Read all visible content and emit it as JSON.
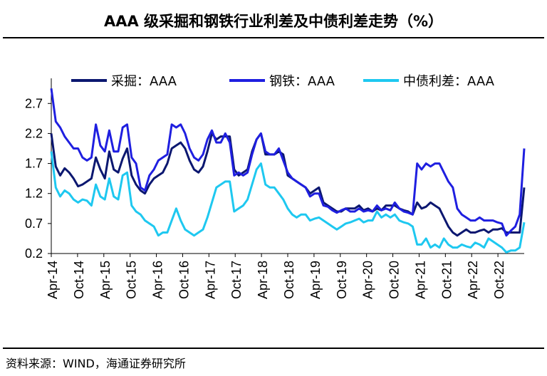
{
  "title": "AAA 级采掘和钢铁行业利差及中债利差走势（%）",
  "source": "资料来源：WIND，海通证券研究所",
  "chart_data": {
    "type": "line",
    "title": "AAA 级采掘和钢铁行业利差及中债利差走势（%）",
    "xlabel": "",
    "ylabel": "",
    "x_tick_labels": [
      "Apr-14",
      "Oct-14",
      "Apr-15",
      "Oct-15",
      "Apr-16",
      "Oct-16",
      "Apr-17",
      "Oct-17",
      "Apr-18",
      "Oct-18",
      "Apr-19",
      "Oct-19",
      "Apr-20",
      "Oct-20",
      "Apr-21",
      "Oct-21",
      "Apr-22",
      "Oct-22"
    ],
    "y_ticks": [
      0.2,
      0.7,
      1.2,
      1.7,
      2.2,
      2.7
    ],
    "ylim": [
      0.2,
      3.0
    ],
    "x_range": [
      0,
      106
    ],
    "legend_position": "top",
    "grid": false,
    "series": [
      {
        "name": "采掘：AAA",
        "color": "#0b1770",
        "points": [
          [
            0,
            2.2
          ],
          [
            1,
            1.65
          ],
          [
            2,
            1.5
          ],
          [
            3,
            1.62
          ],
          [
            4,
            1.55
          ],
          [
            5,
            1.45
          ],
          [
            6,
            1.32
          ],
          [
            7,
            1.35
          ],
          [
            8,
            1.4
          ],
          [
            9,
            1.45
          ],
          [
            10,
            1.8
          ],
          [
            11,
            1.6
          ],
          [
            12,
            1.45
          ],
          [
            13,
            1.9
          ],
          [
            14,
            1.6
          ],
          [
            15,
            1.55
          ],
          [
            16,
            1.78
          ],
          [
            17,
            1.95
          ],
          [
            18,
            1.5
          ],
          [
            19,
            1.35
          ],
          [
            20,
            1.25
          ],
          [
            21,
            1.2
          ],
          [
            22,
            1.35
          ],
          [
            23,
            1.45
          ],
          [
            24,
            1.5
          ],
          [
            25,
            1.55
          ],
          [
            26,
            1.7
          ],
          [
            27,
            1.95
          ],
          [
            28,
            2.0
          ],
          [
            29,
            2.05
          ],
          [
            30,
            1.95
          ],
          [
            31,
            1.75
          ],
          [
            32,
            1.6
          ],
          [
            33,
            1.55
          ],
          [
            34,
            1.65
          ],
          [
            35,
            1.9
          ],
          [
            36,
            2.2
          ],
          [
            37,
            2.1
          ],
          [
            38,
            2.15
          ],
          [
            39,
            2.15
          ],
          [
            40,
            2.15
          ],
          [
            41,
            1.6
          ],
          [
            42,
            1.5
          ],
          [
            43,
            1.55
          ],
          [
            44,
            1.6
          ],
          [
            45,
            1.9
          ],
          [
            46,
            2.1
          ],
          [
            47,
            2.2
          ],
          [
            48,
            1.85
          ],
          [
            49,
            1.85
          ],
          [
            50,
            1.85
          ],
          [
            51,
            1.9
          ],
          [
            52,
            1.85
          ],
          [
            53,
            1.5
          ],
          [
            54,
            1.45
          ],
          [
            55,
            1.4
          ],
          [
            56,
            1.35
          ],
          [
            57,
            1.3
          ],
          [
            58,
            1.2
          ],
          [
            59,
            1.25
          ],
          [
            60,
            1.3
          ],
          [
            61,
            1.05
          ],
          [
            62,
            1.0
          ],
          [
            63,
            0.95
          ],
          [
            64,
            0.9
          ],
          [
            65,
            0.9
          ],
          [
            66,
            0.95
          ],
          [
            67,
            0.95
          ],
          [
            68,
            0.95
          ],
          [
            69,
            1.0
          ],
          [
            70,
            0.92
          ],
          [
            71,
            0.95
          ],
          [
            72,
            0.9
          ],
          [
            73,
            0.95
          ],
          [
            74,
            0.92
          ],
          [
            75,
            1.0
          ],
          [
            76,
            1.0
          ],
          [
            77,
            1.0
          ],
          [
            78,
            0.95
          ],
          [
            79,
            0.92
          ],
          [
            80,
            0.9
          ],
          [
            81,
            0.85
          ],
          [
            82,
            1.05
          ],
          [
            83,
            0.95
          ],
          [
            84,
            0.98
          ],
          [
            85,
            1.05
          ],
          [
            86,
            1.0
          ],
          [
            87,
            0.95
          ],
          [
            88,
            0.8
          ],
          [
            89,
            0.65
          ],
          [
            90,
            0.55
          ],
          [
            91,
            0.5
          ],
          [
            92,
            0.55
          ],
          [
            93,
            0.6
          ],
          [
            94,
            0.55
          ],
          [
            95,
            0.55
          ],
          [
            96,
            0.58
          ],
          [
            97,
            0.6
          ],
          [
            98,
            0.55
          ],
          [
            99,
            0.6
          ],
          [
            100,
            0.6
          ],
          [
            101,
            0.62
          ],
          [
            102,
            0.55
          ],
          [
            103,
            0.55
          ],
          [
            104,
            0.55
          ],
          [
            105,
            0.55
          ],
          [
            106,
            1.3
          ]
        ]
      },
      {
        "name": "钢铁：AAA",
        "color": "#1f1fe0",
        "points": [
          [
            0,
            2.95
          ],
          [
            1,
            2.4
          ],
          [
            2,
            2.3
          ],
          [
            3,
            2.15
          ],
          [
            4,
            2.05
          ],
          [
            5,
            1.95
          ],
          [
            6,
            1.95
          ],
          [
            7,
            1.8
          ],
          [
            8,
            1.75
          ],
          [
            9,
            1.8
          ],
          [
            10,
            2.35
          ],
          [
            11,
            2.0
          ],
          [
            12,
            1.9
          ],
          [
            13,
            2.25
          ],
          [
            14,
            1.9
          ],
          [
            15,
            1.9
          ],
          [
            16,
            2.3
          ],
          [
            17,
            2.35
          ],
          [
            18,
            1.8
          ],
          [
            19,
            1.7
          ],
          [
            20,
            1.3
          ],
          [
            21,
            1.25
          ],
          [
            22,
            1.5
          ],
          [
            23,
            1.6
          ],
          [
            24,
            1.75
          ],
          [
            25,
            1.8
          ],
          [
            26,
            1.85
          ],
          [
            27,
            2.35
          ],
          [
            28,
            2.3
          ],
          [
            29,
            2.35
          ],
          [
            30,
            2.2
          ],
          [
            31,
            1.95
          ],
          [
            32,
            1.8
          ],
          [
            33,
            1.75
          ],
          [
            34,
            1.85
          ],
          [
            35,
            2.1
          ],
          [
            36,
            2.25
          ],
          [
            37,
            2.05
          ],
          [
            38,
            2.05
          ],
          [
            39,
            2.2
          ],
          [
            40,
            2.05
          ],
          [
            41,
            1.5
          ],
          [
            42,
            1.55
          ],
          [
            43,
            1.5
          ],
          [
            44,
            1.55
          ],
          [
            45,
            1.85
          ],
          [
            46,
            2.1
          ],
          [
            47,
            2.2
          ],
          [
            48,
            1.9
          ],
          [
            49,
            1.85
          ],
          [
            50,
            1.85
          ],
          [
            51,
            1.95
          ],
          [
            52,
            1.75
          ],
          [
            53,
            1.55
          ],
          [
            54,
            1.45
          ],
          [
            55,
            1.4
          ],
          [
            56,
            1.35
          ],
          [
            57,
            1.3
          ],
          [
            58,
            1.15
          ],
          [
            59,
            1.2
          ],
          [
            60,
            1.2
          ],
          [
            61,
            1.0
          ],
          [
            62,
            0.98
          ],
          [
            63,
            0.92
          ],
          [
            64,
            0.88
          ],
          [
            65,
            0.92
          ],
          [
            66,
            0.95
          ],
          [
            67,
            0.9
          ],
          [
            68,
            0.9
          ],
          [
            69,
            0.95
          ],
          [
            70,
            0.9
          ],
          [
            71,
            0.92
          ],
          [
            72,
            0.9
          ],
          [
            73,
            1.0
          ],
          [
            74,
            0.92
          ],
          [
            75,
            0.95
          ],
          [
            76,
            0.92
          ],
          [
            77,
            1.05
          ],
          [
            78,
            0.95
          ],
          [
            79,
            0.9
          ],
          [
            80,
            0.88
          ],
          [
            81,
            0.85
          ],
          [
            82,
            1.7
          ],
          [
            83,
            1.6
          ],
          [
            84,
            1.7
          ],
          [
            85,
            1.65
          ],
          [
            86,
            1.7
          ],
          [
            87,
            1.7
          ],
          [
            88,
            1.55
          ],
          [
            89,
            1.4
          ],
          [
            90,
            1.3
          ],
          [
            91,
            0.95
          ],
          [
            92,
            0.85
          ],
          [
            93,
            0.8
          ],
          [
            94,
            0.75
          ],
          [
            95,
            0.75
          ],
          [
            96,
            0.8
          ],
          [
            97,
            0.75
          ],
          [
            98,
            0.75
          ],
          [
            99,
            0.75
          ],
          [
            100,
            0.72
          ],
          [
            101,
            0.7
          ],
          [
            102,
            0.5
          ],
          [
            103,
            0.58
          ],
          [
            104,
            0.65
          ],
          [
            105,
            0.85
          ],
          [
            106,
            1.95
          ]
        ]
      },
      {
        "name": "中债利差：AAA",
        "color": "#1ec8f0",
        "points": [
          [
            0,
            1.9
          ],
          [
            1,
            1.3
          ],
          [
            2,
            1.15
          ],
          [
            3,
            1.25
          ],
          [
            4,
            1.2
          ],
          [
            5,
            1.1
          ],
          [
            6,
            1.05
          ],
          [
            7,
            1.1
          ],
          [
            8,
            1.08
          ],
          [
            9,
            1.0
          ],
          [
            10,
            1.35
          ],
          [
            11,
            1.15
          ],
          [
            12,
            1.1
          ],
          [
            13,
            1.45
          ],
          [
            14,
            1.15
          ],
          [
            15,
            1.1
          ],
          [
            16,
            1.5
          ],
          [
            17,
            1.55
          ],
          [
            18,
            1.0
          ],
          [
            19,
            0.9
          ],
          [
            20,
            0.85
          ],
          [
            21,
            0.75
          ],
          [
            22,
            0.7
          ],
          [
            23,
            0.65
          ],
          [
            24,
            0.5
          ],
          [
            25,
            0.55
          ],
          [
            26,
            0.55
          ],
          [
            27,
            0.75
          ],
          [
            28,
            0.95
          ],
          [
            29,
            0.75
          ],
          [
            30,
            0.6
          ],
          [
            31,
            0.55
          ],
          [
            32,
            0.5
          ],
          [
            33,
            0.55
          ],
          [
            34,
            0.6
          ],
          [
            35,
            0.8
          ],
          [
            36,
            1.05
          ],
          [
            37,
            1.3
          ],
          [
            38,
            1.35
          ],
          [
            39,
            1.4
          ],
          [
            40,
            1.4
          ],
          [
            41,
            0.9
          ],
          [
            42,
            0.95
          ],
          [
            43,
            1.0
          ],
          [
            44,
            1.1
          ],
          [
            45,
            1.35
          ],
          [
            46,
            1.6
          ],
          [
            47,
            1.7
          ],
          [
            48,
            1.35
          ],
          [
            49,
            1.3
          ],
          [
            50,
            1.3
          ],
          [
            51,
            1.2
          ],
          [
            52,
            1.1
          ],
          [
            53,
            0.95
          ],
          [
            54,
            0.85
          ],
          [
            55,
            0.8
          ],
          [
            56,
            0.85
          ],
          [
            57,
            0.85
          ],
          [
            58,
            0.75
          ],
          [
            59,
            0.78
          ],
          [
            60,
            0.8
          ],
          [
            61,
            0.75
          ],
          [
            62,
            0.7
          ],
          [
            63,
            0.65
          ],
          [
            64,
            0.6
          ],
          [
            65,
            0.65
          ],
          [
            66,
            0.7
          ],
          [
            67,
            0.72
          ],
          [
            68,
            0.75
          ],
          [
            69,
            0.78
          ],
          [
            70,
            0.72
          ],
          [
            71,
            0.75
          ],
          [
            72,
            0.75
          ],
          [
            73,
            0.9
          ],
          [
            74,
            0.8
          ],
          [
            75,
            0.85
          ],
          [
            76,
            0.8
          ],
          [
            77,
            0.85
          ],
          [
            78,
            0.75
          ],
          [
            79,
            0.72
          ],
          [
            80,
            0.7
          ],
          [
            81,
            0.65
          ],
          [
            82,
            0.35
          ],
          [
            83,
            0.35
          ],
          [
            84,
            0.45
          ],
          [
            85,
            0.3
          ],
          [
            86,
            0.35
          ],
          [
            87,
            0.3
          ],
          [
            88,
            0.45
          ],
          [
            89,
            0.35
          ],
          [
            90,
            0.3
          ],
          [
            91,
            0.3
          ],
          [
            92,
            0.35
          ],
          [
            93,
            0.32
          ],
          [
            94,
            0.3
          ],
          [
            95,
            0.38
          ],
          [
            96,
            0.35
          ],
          [
            97,
            0.3
          ],
          [
            98,
            0.45
          ],
          [
            99,
            0.4
          ],
          [
            100,
            0.35
          ],
          [
            101,
            0.3
          ],
          [
            102,
            0.22
          ],
          [
            103,
            0.25
          ],
          [
            104,
            0.25
          ],
          [
            105,
            0.3
          ],
          [
            106,
            0.72
          ]
        ]
      }
    ]
  }
}
